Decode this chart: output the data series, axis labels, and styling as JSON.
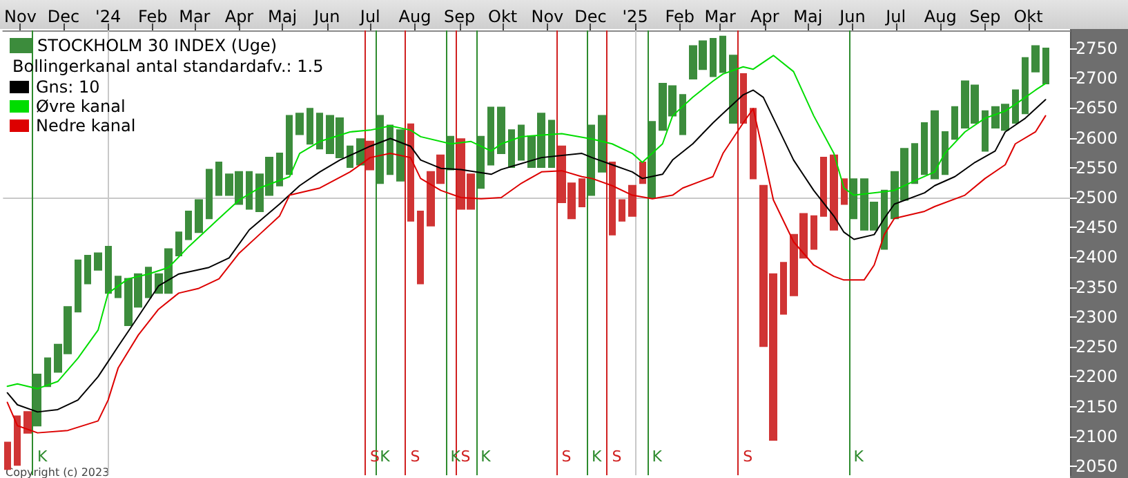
{
  "chart_data": {
    "type": "candlestick",
    "subtitle": "Bollingerkanal antal standardafv.: 1.5",
    "annotations": [
      "Copyright (c) 2023"
    ],
    "legend": "top left",
    "grid": false,
    "xlim": [
      "2023-10-20",
      "2025-10-30"
    ],
    "xticks": [
      {
        "value": "2023-11-01",
        "label": "Nov"
      },
      {
        "value": "2023-12-01",
        "label": "Dec"
      },
      {
        "value": "2024-01-01",
        "label": "'24"
      },
      {
        "value": "2024-02-01",
        "label": "Feb"
      },
      {
        "value": "2024-03-01",
        "label": "Mar"
      },
      {
        "value": "2024-04-01",
        "label": "Apr"
      },
      {
        "value": "2024-05-01",
        "label": "Maj"
      },
      {
        "value": "2024-06-01",
        "label": "Jun"
      },
      {
        "value": "2024-07-01",
        "label": "Jul"
      },
      {
        "value": "2024-08-01",
        "label": "Aug"
      },
      {
        "value": "2024-09-01",
        "label": "Sep"
      },
      {
        "value": "2024-10-01",
        "label": "Okt"
      },
      {
        "value": "2024-11-01",
        "label": "Nov"
      },
      {
        "value": "2024-12-01",
        "label": "Dec"
      },
      {
        "value": "2025-01-01",
        "label": "'25"
      },
      {
        "value": "2025-02-01",
        "label": "Feb"
      },
      {
        "value": "2025-03-01",
        "label": "Mar"
      },
      {
        "value": "2025-04-01",
        "label": "Apr"
      },
      {
        "value": "2025-05-01",
        "label": "Maj"
      },
      {
        "value": "2025-06-01",
        "label": "Jun"
      },
      {
        "value": "2025-07-01",
        "label": "Jul"
      },
      {
        "value": "2025-08-01",
        "label": "Aug"
      },
      {
        "value": "2025-09-01",
        "label": "Sep"
      },
      {
        "value": "2025-10-01",
        "label": "Okt"
      }
    ],
    "ylim": [
      2035,
      2780
    ],
    "yticks": [
      2050,
      2100,
      2150,
      2200,
      2250,
      2300,
      2350,
      2400,
      2450,
      2500,
      2550,
      2600,
      2650,
      2700,
      2750
    ],
    "ref_lines": [
      {
        "axis": "y",
        "value": 2500,
        "color": "#c8c8c8"
      },
      {
        "axis": "x",
        "value": "2024-01-01",
        "color": "#c8c8c8"
      },
      {
        "axis": "x",
        "value": "2025-01-01",
        "color": "#c8c8c8"
      },
      {
        "axis": "x",
        "value": "2023-11-09T12:00",
        "label": "K",
        "color": "#2e8b2e"
      },
      {
        "axis": "x",
        "value": "2024-06-27T12:00",
        "label": "S",
        "color": "#d02020"
      },
      {
        "axis": "x",
        "value": "2024-07-04T12:00",
        "label": "K",
        "color": "#2e8b2e"
      },
      {
        "axis": "x",
        "value": "2024-07-25T12:00",
        "label": "S",
        "color": "#d02020"
      },
      {
        "axis": "x",
        "value": "2024-08-22T12:00",
        "label": "K",
        "color": "#2e8b2e"
      },
      {
        "axis": "x",
        "value": "2024-08-29T12:00",
        "label": "S",
        "color": "#d02020"
      },
      {
        "axis": "x",
        "value": "2024-09-12T12:00",
        "label": "K",
        "color": "#2e8b2e"
      },
      {
        "axis": "x",
        "value": "2024-11-07T12:00",
        "label": "S",
        "color": "#d02020"
      },
      {
        "axis": "x",
        "value": "2024-11-28T12:00",
        "label": "K",
        "color": "#2e8b2e"
      },
      {
        "axis": "x",
        "value": "2024-12-12T12:00",
        "label": "S",
        "color": "#d02020"
      },
      {
        "axis": "x",
        "value": "2025-01-09T12:00",
        "label": "K",
        "color": "#2e8b2e"
      },
      {
        "axis": "x",
        "value": "2025-03-13T12:00",
        "label": "S",
        "color": "#d02020"
      },
      {
        "axis": "x",
        "value": "2025-05-29T12:00",
        "label": "K",
        "color": "#2e8b2e"
      }
    ],
    "series": [
      {
        "name": "STOCKHOLM 30 INDEX (Uge)",
        "type": "candlestick",
        "color": "#3c8c3c",
        "x": [
          "2023-10-23",
          "2023-10-30",
          "2023-11-06",
          "2023-11-13",
          "2023-11-20",
          "2023-11-27",
          "2023-12-04",
          "2023-12-11",
          "2023-12-18",
          "2023-12-25",
          "2024-01-01",
          "2024-01-08",
          "2024-01-15",
          "2024-01-22",
          "2024-01-29",
          "2024-02-05",
          "2024-02-12",
          "2024-02-19",
          "2024-02-26",
          "2024-03-04",
          "2024-03-11",
          "2024-03-18",
          "2024-03-25",
          "2024-04-01",
          "2024-04-08",
          "2024-04-15",
          "2024-04-22",
          "2024-04-29",
          "2024-05-06",
          "2024-05-13",
          "2024-05-20",
          "2024-05-27",
          "2024-06-03",
          "2024-06-10",
          "2024-06-17",
          "2024-06-24",
          "2024-07-01",
          "2024-07-08",
          "2024-07-15",
          "2024-07-22",
          "2024-07-29",
          "2024-08-05",
          "2024-08-12",
          "2024-08-19",
          "2024-08-26",
          "2024-09-02",
          "2024-09-09",
          "2024-09-16",
          "2024-09-23",
          "2024-09-30",
          "2024-10-07",
          "2024-10-14",
          "2024-10-21",
          "2024-10-28",
          "2024-11-04",
          "2024-11-11",
          "2024-11-18",
          "2024-11-25",
          "2024-12-02",
          "2024-12-09",
          "2024-12-16",
          "2024-12-23",
          "2024-12-30",
          "2025-01-06",
          "2025-01-13",
          "2025-01-20",
          "2025-01-27",
          "2025-02-03",
          "2025-02-10",
          "2025-02-17",
          "2025-02-24",
          "2025-03-03",
          "2025-03-10",
          "2025-03-17",
          "2025-03-24",
          "2025-03-31",
          "2025-04-07",
          "2025-04-14",
          "2025-04-21",
          "2025-04-28",
          "2025-05-05",
          "2025-05-12",
          "2025-05-19",
          "2025-05-26",
          "2025-06-02",
          "2025-06-09",
          "2025-06-16",
          "2025-06-23",
          "2025-06-30",
          "2025-07-07",
          "2025-07-14",
          "2025-07-21",
          "2025-07-28",
          "2025-08-04",
          "2025-08-11",
          "2025-08-18",
          "2025-08-25",
          "2025-09-01",
          "2025-09-08",
          "2025-09-15",
          "2025-09-22",
          "2025-09-29",
          "2025-10-06",
          "2025-10-13"
        ],
        "ohlc": [
          [
            2090,
            2090,
            2045,
            2045
          ],
          [
            2134,
            2134,
            2052,
            2052
          ],
          [
            2141,
            2141,
            2106,
            2106
          ],
          [
            2118,
            2204,
            2118,
            2204
          ],
          [
            2184,
            2231,
            2184,
            2231
          ],
          [
            2208,
            2254,
            2208,
            2254
          ],
          [
            2239,
            2317,
            2239,
            2317
          ],
          [
            2309,
            2395,
            2309,
            2395
          ],
          [
            2356,
            2403,
            2356,
            2403
          ],
          [
            2379,
            2407,
            2379,
            2407
          ],
          [
            2340,
            2418,
            2340,
            2418
          ],
          [
            2333,
            2368,
            2333,
            2368
          ],
          [
            2286,
            2364,
            2286,
            2364
          ],
          [
            2317,
            2372,
            2317,
            2372
          ],
          [
            2333,
            2383,
            2333,
            2383
          ],
          [
            2340,
            2372,
            2340,
            2372
          ],
          [
            2340,
            2414,
            2340,
            2414
          ],
          [
            2403,
            2442,
            2403,
            2442
          ],
          [
            2430,
            2477,
            2430,
            2477
          ],
          [
            2442,
            2496,
            2442,
            2496
          ],
          [
            2465,
            2547,
            2465,
            2547
          ],
          [
            2504,
            2559,
            2504,
            2559
          ],
          [
            2504,
            2539,
            2504,
            2539
          ],
          [
            2489,
            2543,
            2489,
            2543
          ],
          [
            2481,
            2543,
            2481,
            2543
          ],
          [
            2477,
            2539,
            2477,
            2539
          ],
          [
            2504,
            2567,
            2504,
            2567
          ],
          [
            2520,
            2574,
            2520,
            2574
          ],
          [
            2539,
            2637,
            2539,
            2637
          ],
          [
            2606,
            2641,
            2606,
            2641
          ],
          [
            2590,
            2649,
            2590,
            2649
          ],
          [
            2582,
            2641,
            2582,
            2641
          ],
          [
            2574,
            2637,
            2574,
            2637
          ],
          [
            2567,
            2633,
            2567,
            2633
          ],
          [
            2551,
            2586,
            2551,
            2586
          ],
          [
            2555,
            2598,
            2555,
            2598
          ],
          [
            2594,
            2594,
            2547,
            2547
          ],
          [
            2524,
            2637,
            2524,
            2637
          ],
          [
            2539,
            2621,
            2539,
            2621
          ],
          [
            2528,
            2613,
            2528,
            2613
          ],
          [
            2623,
            2623,
            2461,
            2461
          ],
          [
            2477,
            2477,
            2356,
            2356
          ],
          [
            2543,
            2543,
            2453,
            2453
          ],
          [
            2571,
            2571,
            2524,
            2524
          ],
          [
            2547,
            2602,
            2547,
            2602
          ],
          [
            2598,
            2598,
            2481,
            2481
          ],
          [
            2539,
            2539,
            2481,
            2481
          ],
          [
            2516,
            2602,
            2516,
            2602
          ],
          [
            2555,
            2651,
            2555,
            2651
          ],
          [
            2574,
            2651,
            2574,
            2651
          ],
          [
            2551,
            2613,
            2551,
            2613
          ],
          [
            2563,
            2621,
            2563,
            2621
          ],
          [
            2551,
            2602,
            2551,
            2602
          ],
          [
            2551,
            2641,
            2551,
            2641
          ],
          [
            2551,
            2629,
            2551,
            2629
          ],
          [
            2586,
            2586,
            2492,
            2492
          ],
          [
            2524,
            2524,
            2465,
            2465
          ],
          [
            2531,
            2531,
            2485,
            2485
          ],
          [
            2504,
            2621,
            2504,
            2621
          ],
          [
            2543,
            2637,
            2543,
            2637
          ],
          [
            2559,
            2559,
            2438,
            2438
          ],
          [
            2496,
            2496,
            2461,
            2461
          ],
          [
            2520,
            2520,
            2469,
            2469
          ],
          [
            2559,
            2559,
            2524,
            2524
          ],
          [
            2500,
            2627,
            2500,
            2627
          ],
          [
            2613,
            2691,
            2613,
            2691
          ],
          [
            2637,
            2687,
            2637,
            2687
          ],
          [
            2606,
            2672,
            2606,
            2672
          ],
          [
            2699,
            2754,
            2699,
            2754
          ],
          [
            2715,
            2762,
            2715,
            2762
          ],
          [
            2703,
            2766,
            2703,
            2766
          ],
          [
            2710,
            2770,
            2710,
            2770
          ],
          [
            2625,
            2738,
            2625,
            2738
          ],
          [
            2707,
            2707,
            2625,
            2625
          ],
          [
            2649,
            2649,
            2532,
            2532
          ],
          [
            2520,
            2520,
            2251,
            2251
          ],
          [
            2372,
            2372,
            2094,
            2094
          ],
          [
            2391,
            2391,
            2305,
            2305
          ],
          [
            2438,
            2438,
            2336,
            2336
          ],
          [
            2473,
            2473,
            2399,
            2399
          ],
          [
            2469,
            2469,
            2414,
            2414
          ],
          [
            2567,
            2567,
            2469,
            2469
          ],
          [
            2571,
            2571,
            2446,
            2446
          ],
          [
            2531,
            2531,
            2489,
            2489
          ],
          [
            2465,
            2531,
            2465,
            2531
          ],
          [
            2446,
            2531,
            2446,
            2531
          ],
          [
            2446,
            2492,
            2446,
            2492
          ],
          [
            2414,
            2512,
            2414,
            2512
          ],
          [
            2465,
            2543,
            2465,
            2543
          ],
          [
            2496,
            2582,
            2496,
            2582
          ],
          [
            2524,
            2590,
            2524,
            2590
          ],
          [
            2539,
            2625,
            2539,
            2625
          ],
          [
            2532,
            2645,
            2532,
            2645
          ],
          [
            2539,
            2610,
            2539,
            2610
          ],
          [
            2598,
            2652,
            2598,
            2652
          ],
          [
            2617,
            2695,
            2617,
            2695
          ],
          [
            2625,
            2688,
            2625,
            2688
          ],
          [
            2578,
            2645,
            2578,
            2645
          ],
          [
            2617,
            2652,
            2617,
            2652
          ],
          [
            2613,
            2656,
            2613,
            2656
          ],
          [
            2625,
            2680,
            2625,
            2680
          ],
          [
            2641,
            2734,
            2641,
            2734
          ],
          [
            2711,
            2754,
            2711,
            2754
          ],
          [
            2691,
            2750,
            2691,
            2750
          ]
        ],
        "colors": [
          "#d03434",
          "#d03434",
          "#d03434",
          "#3c8c3c",
          "#3c8c3c",
          "#3c8c3c",
          "#3c8c3c",
          "#3c8c3c",
          "#3c8c3c",
          "#3c8c3c",
          "#3c8c3c",
          "#3c8c3c",
          "#3c8c3c",
          "#3c8c3c",
          "#3c8c3c",
          "#3c8c3c",
          "#3c8c3c",
          "#3c8c3c",
          "#3c8c3c",
          "#3c8c3c",
          "#3c8c3c",
          "#3c8c3c",
          "#3c8c3c",
          "#3c8c3c",
          "#3c8c3c",
          "#3c8c3c",
          "#3c8c3c",
          "#3c8c3c",
          "#3c8c3c",
          "#3c8c3c",
          "#3c8c3c",
          "#3c8c3c",
          "#3c8c3c",
          "#3c8c3c",
          "#3c8c3c",
          "#3c8c3c",
          "#d03434",
          "#3c8c3c",
          "#3c8c3c",
          "#3c8c3c",
          "#d03434",
          "#d03434",
          "#d03434",
          "#d03434",
          "#3c8c3c",
          "#d03434",
          "#d03434",
          "#3c8c3c",
          "#3c8c3c",
          "#3c8c3c",
          "#3c8c3c",
          "#3c8c3c",
          "#3c8c3c",
          "#3c8c3c",
          "#3c8c3c",
          "#d03434",
          "#d03434",
          "#d03434",
          "#3c8c3c",
          "#3c8c3c",
          "#d03434",
          "#d03434",
          "#d03434",
          "#d03434",
          "#3c8c3c",
          "#3c8c3c",
          "#3c8c3c",
          "#3c8c3c",
          "#3c8c3c",
          "#3c8c3c",
          "#3c8c3c",
          "#3c8c3c",
          "#3c8c3c",
          "#d03434",
          "#d03434",
          "#d03434",
          "#d03434",
          "#d03434",
          "#d03434",
          "#d03434",
          "#d03434",
          "#d03434",
          "#d03434",
          "#d03434",
          "#3c8c3c",
          "#3c8c3c",
          "#3c8c3c",
          "#3c8c3c",
          "#3c8c3c",
          "#3c8c3c",
          "#3c8c3c",
          "#3c8c3c",
          "#3c8c3c",
          "#3c8c3c",
          "#3c8c3c",
          "#3c8c3c",
          "#3c8c3c",
          "#3c8c3c",
          "#3c8c3c",
          "#3c8c3c",
          "#3c8c3c",
          "#3c8c3c",
          "#3c8c3c",
          "#3c8c3c"
        ]
      },
      {
        "name": "Gns: 10",
        "type": "line",
        "color": "#000000",
        "x": [
          "2023-10-23",
          "2023-10-30",
          "2023-11-13",
          "2023-11-27",
          "2023-12-11",
          "2023-12-25",
          "2024-01-08",
          "2024-01-22",
          "2024-02-05",
          "2024-02-19",
          "2024-03-11",
          "2024-03-25",
          "2024-04-08",
          "2024-04-29",
          "2024-05-13",
          "2024-05-27",
          "2024-06-10",
          "2024-07-01",
          "2024-07-15",
          "2024-07-29",
          "2024-08-05",
          "2024-08-19",
          "2024-09-02",
          "2024-09-23",
          "2024-09-30",
          "2024-10-14",
          "2024-10-28",
          "2024-11-25",
          "2024-12-02",
          "2024-12-16",
          "2024-12-30",
          "2025-01-06",
          "2025-01-20",
          "2025-01-27",
          "2025-02-10",
          "2025-02-24",
          "2025-03-03",
          "2025-03-17",
          "2025-03-24",
          "2025-03-31",
          "2025-04-07",
          "2025-04-21",
          "2025-05-05",
          "2025-05-19",
          "2025-05-26",
          "2025-06-02",
          "2025-06-16",
          "2025-06-23",
          "2025-06-30",
          "2025-07-21",
          "2025-07-28",
          "2025-08-11",
          "2025-08-25",
          "2025-09-08",
          "2025-09-15",
          "2025-09-29",
          "2025-10-13"
        ],
        "values": [
          2173,
          2153,
          2141,
          2145,
          2161,
          2200,
          2251,
          2301,
          2352,
          2372,
          2383,
          2399,
          2446,
          2489,
          2520,
          2543,
          2563,
          2586,
          2599,
          2586,
          2563,
          2549,
          2547,
          2539,
          2547,
          2557,
          2567,
          2574,
          2567,
          2555,
          2543,
          2532,
          2539,
          2563,
          2590,
          2625,
          2641,
          2672,
          2680,
          2668,
          2633,
          2563,
          2512,
          2469,
          2442,
          2430,
          2438,
          2465,
          2489,
          2508,
          2520,
          2535,
          2559,
          2578,
          2610,
          2633,
          2664
        ]
      },
      {
        "name": "Øvre kanal",
        "type": "line",
        "color": "#00dd00",
        "x": [
          "2023-10-23",
          "2023-10-30",
          "2023-11-13",
          "2023-11-27",
          "2023-12-11",
          "2023-12-25",
          "2024-01-01",
          "2024-01-15",
          "2024-01-29",
          "2024-02-12",
          "2024-02-26",
          "2024-03-18",
          "2024-04-01",
          "2024-04-15",
          "2024-05-06",
          "2024-05-13",
          "2024-05-27",
          "2024-06-17",
          "2024-07-01",
          "2024-07-15",
          "2024-07-29",
          "2024-08-05",
          "2024-08-26",
          "2024-09-09",
          "2024-09-23",
          "2024-09-30",
          "2024-10-14",
          "2024-11-11",
          "2024-12-02",
          "2024-12-16",
          "2024-12-30",
          "2025-01-06",
          "2025-01-20",
          "2025-01-27",
          "2025-02-10",
          "2025-02-24",
          "2025-03-03",
          "2025-03-17",
          "2025-03-24",
          "2025-04-07",
          "2025-04-21",
          "2025-05-05",
          "2025-05-19",
          "2025-05-26",
          "2025-06-02",
          "2025-06-30",
          "2025-07-14",
          "2025-07-28",
          "2025-08-04",
          "2025-08-18",
          "2025-09-01",
          "2025-09-15",
          "2025-09-22",
          "2025-10-06",
          "2025-10-13"
        ],
        "values": [
          2184,
          2188,
          2180,
          2192,
          2231,
          2278,
          2340,
          2364,
          2372,
          2383,
          2418,
          2465,
          2496,
          2516,
          2535,
          2574,
          2594,
          2610,
          2613,
          2620,
          2613,
          2602,
          2590,
          2594,
          2578,
          2590,
          2602,
          2607,
          2598,
          2590,
          2574,
          2559,
          2590,
          2637,
          2668,
          2695,
          2707,
          2719,
          2715,
          2738,
          2711,
          2637,
          2574,
          2516,
          2504,
          2512,
          2528,
          2543,
          2574,
          2610,
          2633,
          2645,
          2656,
          2680,
          2691
        ]
      },
      {
        "name": "Nedre kanal",
        "type": "line",
        "color": "#dd0000",
        "x": [
          "2023-10-23",
          "2023-10-30",
          "2023-11-13",
          "2023-12-04",
          "2023-12-25",
          "2024-01-01",
          "2024-01-08",
          "2024-01-22",
          "2024-02-05",
          "2024-02-19",
          "2024-03-04",
          "2024-03-18",
          "2024-04-01",
          "2024-04-15",
          "2024-04-29",
          "2024-05-06",
          "2024-05-27",
          "2024-06-17",
          "2024-07-01",
          "2024-07-15",
          "2024-07-29",
          "2024-08-05",
          "2024-08-19",
          "2024-09-02",
          "2024-09-16",
          "2024-09-30",
          "2024-10-14",
          "2024-10-28",
          "2024-11-11",
          "2024-11-25",
          "2024-12-02",
          "2024-12-16",
          "2024-12-30",
          "2025-01-13",
          "2025-01-27",
          "2025-02-03",
          "2025-02-24",
          "2025-03-03",
          "2025-03-17",
          "2025-03-24",
          "2025-03-31",
          "2025-04-07",
          "2025-04-21",
          "2025-05-05",
          "2025-05-19",
          "2025-05-26",
          "2025-06-09",
          "2025-06-16",
          "2025-06-23",
          "2025-06-30",
          "2025-07-21",
          "2025-07-28",
          "2025-08-18",
          "2025-09-01",
          "2025-09-15",
          "2025-09-22",
          "2025-10-06",
          "2025-10-13"
        ],
        "values": [
          2157,
          2118,
          2106,
          2110,
          2126,
          2161,
          2215,
          2270,
          2313,
          2340,
          2348,
          2364,
          2407,
          2438,
          2469,
          2504,
          2516,
          2543,
          2567,
          2574,
          2567,
          2532,
          2512,
          2500,
          2498,
          2500,
          2524,
          2543,
          2545,
          2535,
          2532,
          2520,
          2504,
          2498,
          2504,
          2516,
          2535,
          2574,
          2625,
          2649,
          2574,
          2496,
          2426,
          2387,
          2368,
          2362,
          2362,
          2387,
          2438,
          2465,
          2477,
          2485,
          2504,
          2532,
          2555,
          2590,
          2610,
          2637
        ]
      }
    ]
  }
}
